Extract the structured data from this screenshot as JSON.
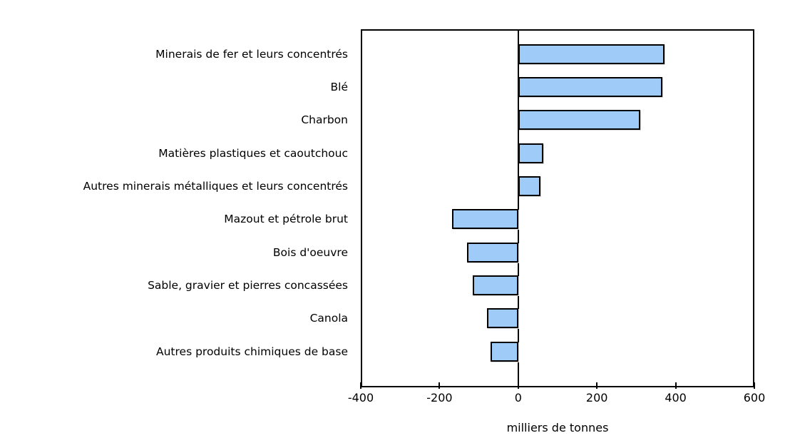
{
  "chart_data": {
    "type": "bar",
    "orientation": "horizontal",
    "title": "",
    "xlabel": "milliers de tonnes",
    "ylabel": "",
    "categories": [
      "Minerais de fer et leurs concentrés",
      "Blé",
      "Charbon",
      "Matières plastiques et caoutchouc",
      "Autres minerais métalliques et leurs concentrés",
      "Mazout et pétrole brut",
      "Bois d'oeuvre",
      "Sable, gravier et pierres concassées",
      "Canola",
      "Autres produits chimiques de base"
    ],
    "values": [
      372,
      366,
      310,
      63,
      57,
      -169,
      -130,
      -115,
      -80,
      -71
    ],
    "xlim": [
      -400,
      600
    ],
    "xticks": [
      -400,
      -200,
      0,
      200,
      400,
      600
    ],
    "grid": false,
    "legend": null,
    "colors": {
      "bar_fill": "#9ECBF8",
      "bar_border": "#000000",
      "axis": "#000000",
      "text": "#000000",
      "background": "#FFFFFF"
    }
  }
}
